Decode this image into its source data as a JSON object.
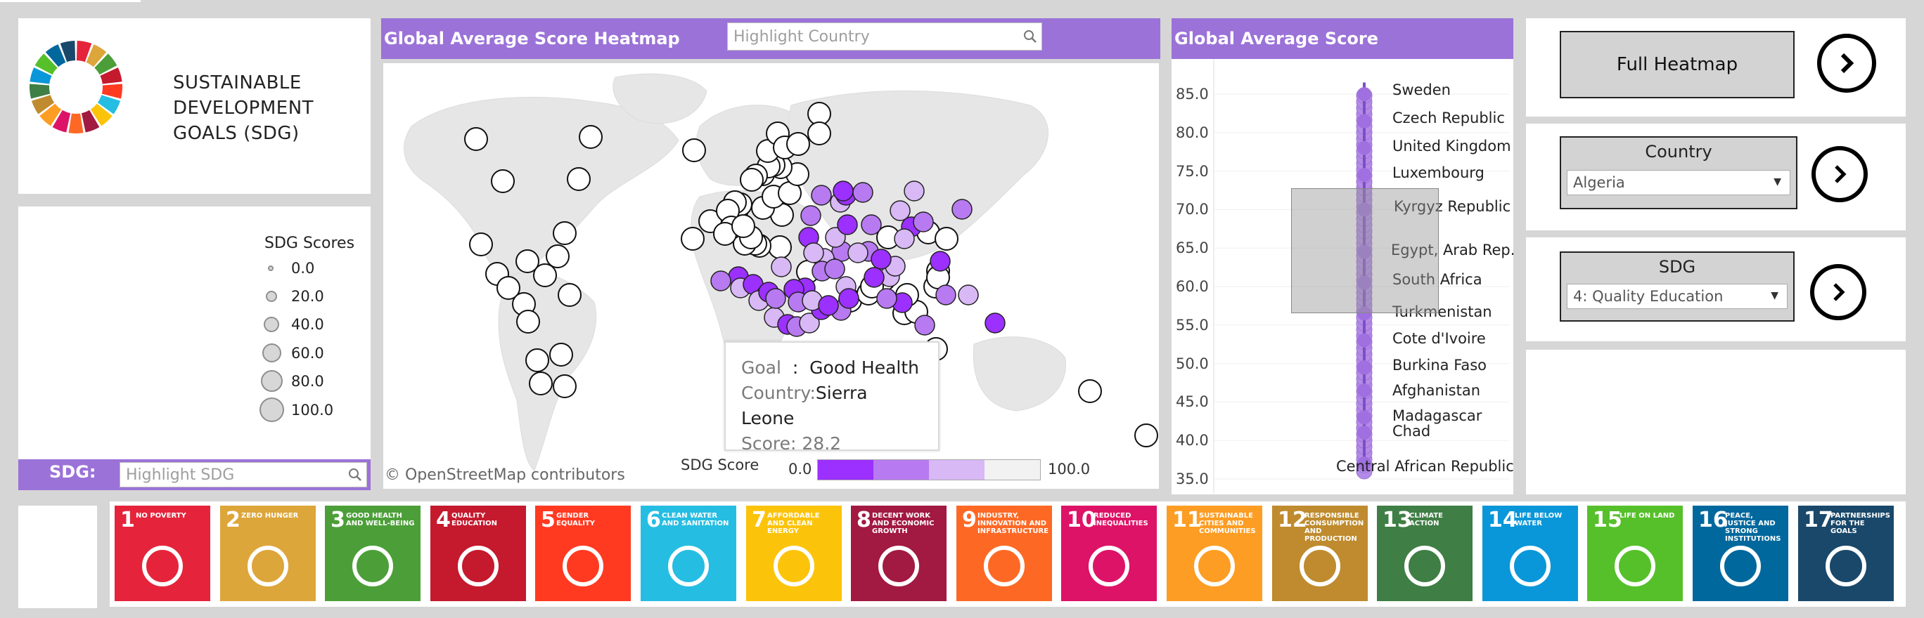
{
  "logo": {
    "line1": "SUSTAINABLE",
    "line2": "DEVELOPMENT",
    "line3": "GOALS (SDG)"
  },
  "legend": {
    "title": "SDG Scores",
    "items": [
      "0.0",
      "20.0",
      "40.0",
      "60.0",
      "80.0",
      "100.0"
    ]
  },
  "sdg_filter": {
    "label": "SDG:",
    "placeholder": "Highlight SDG"
  },
  "heatmap": {
    "title": "Global  Average Score Heatmap",
    "search_placeholder": "Highlight Country",
    "attribution": "© OpenStreetMap contributors",
    "scale_title": "SDG Score",
    "scale_min": "0.0",
    "scale_max": "100.0"
  },
  "tooltip": {
    "goal_key": "Goal",
    "goal_sep": "  :  ",
    "goal_val": "Good Health",
    "country_key": "Country:",
    "country_val": "Sierra Leone",
    "score_text": "Score: 28.2"
  },
  "avg_chart": {
    "title": "Global Average Score",
    "y_ticks": [
      "85.0",
      "80.0",
      "75.0",
      "70.0",
      "65.0",
      "60.0",
      "55.0",
      "50.0",
      "45.0",
      "40.0",
      "35.0"
    ],
    "countries": [
      "Sweden",
      "Czech Republic",
      "United Kingdom",
      "Luxembourg",
      "Kyrgyz Republic",
      "Egypt, Arab Rep.",
      "South Africa",
      "Turkmenistan",
      "Cote d'Ivoire",
      "Burkina Faso",
      "Afghanistan",
      "Madagascar",
      "Chad",
      "Central African Republic"
    ]
  },
  "chart_data": {
    "type": "scatter",
    "title": "Global Average Score",
    "ylim": [
      35,
      87
    ],
    "labels": [
      "Sweden",
      "Czech Republic",
      "United Kingdom",
      "Luxembourg",
      "Kyrgyz Republic",
      "Egypt, Arab Rep.",
      "South Africa",
      "Turkmenistan",
      "Cote d'Ivoire",
      "Burkina Faso",
      "Afghanistan",
      "Madagascar",
      "Chad",
      "Central African Republic"
    ],
    "values": [
      85,
      81.5,
      78,
      74.5,
      70,
      64.5,
      60.5,
      56.5,
      53,
      49.5,
      46.5,
      43,
      41,
      37
    ]
  },
  "controls": {
    "full_heatmap": "Full Heatmap",
    "country_title": "Country",
    "country_value": "Algeria",
    "sdg_title": "SDG",
    "sdg_value": "4: Quality Education"
  },
  "tiles": [
    {
      "num": "1",
      "label": "No poverty",
      "color": "#e5243b"
    },
    {
      "num": "2",
      "label": "Zero hunger",
      "color": "#dda63a"
    },
    {
      "num": "3",
      "label": "Good health and well-being",
      "color": "#4c9f38"
    },
    {
      "num": "4",
      "label": "Quality education",
      "color": "#c5192d"
    },
    {
      "num": "5",
      "label": "Gender equality",
      "color": "#ff3a21"
    },
    {
      "num": "6",
      "label": "Clean water and sanitation",
      "color": "#26bde2"
    },
    {
      "num": "7",
      "label": "Affordable and clean energy",
      "color": "#fcc30b"
    },
    {
      "num": "8",
      "label": "Decent work and economic growth",
      "color": "#a21942"
    },
    {
      "num": "9",
      "label": "Industry, innovation and infrastructure",
      "color": "#fd6925"
    },
    {
      "num": "10",
      "label": "Reduced inequalities",
      "color": "#dd1367"
    },
    {
      "num": "11",
      "label": "Sustainable cities and communities",
      "color": "#fd9d24"
    },
    {
      "num": "12",
      "label": "Responsible consumption and production",
      "color": "#bf8b2e"
    },
    {
      "num": "13",
      "label": "Climate action",
      "color": "#3f7e44"
    },
    {
      "num": "14",
      "label": "Life below water",
      "color": "#0a97d9"
    },
    {
      "num": "15",
      "label": "Life on land",
      "color": "#56c02b"
    },
    {
      "num": "16",
      "label": "Peace, justice and strong institutions",
      "color": "#00689d"
    },
    {
      "num": "17",
      "label": "Partnerships for the goals",
      "color": "#19486a"
    }
  ],
  "colors": {
    "accent": "#9b72d8",
    "scale_dark": "#9b30ff",
    "scale_mid": "#b77af0",
    "scale_light": "#d8b8f5",
    "scale_blank": "#f2f2f2"
  }
}
